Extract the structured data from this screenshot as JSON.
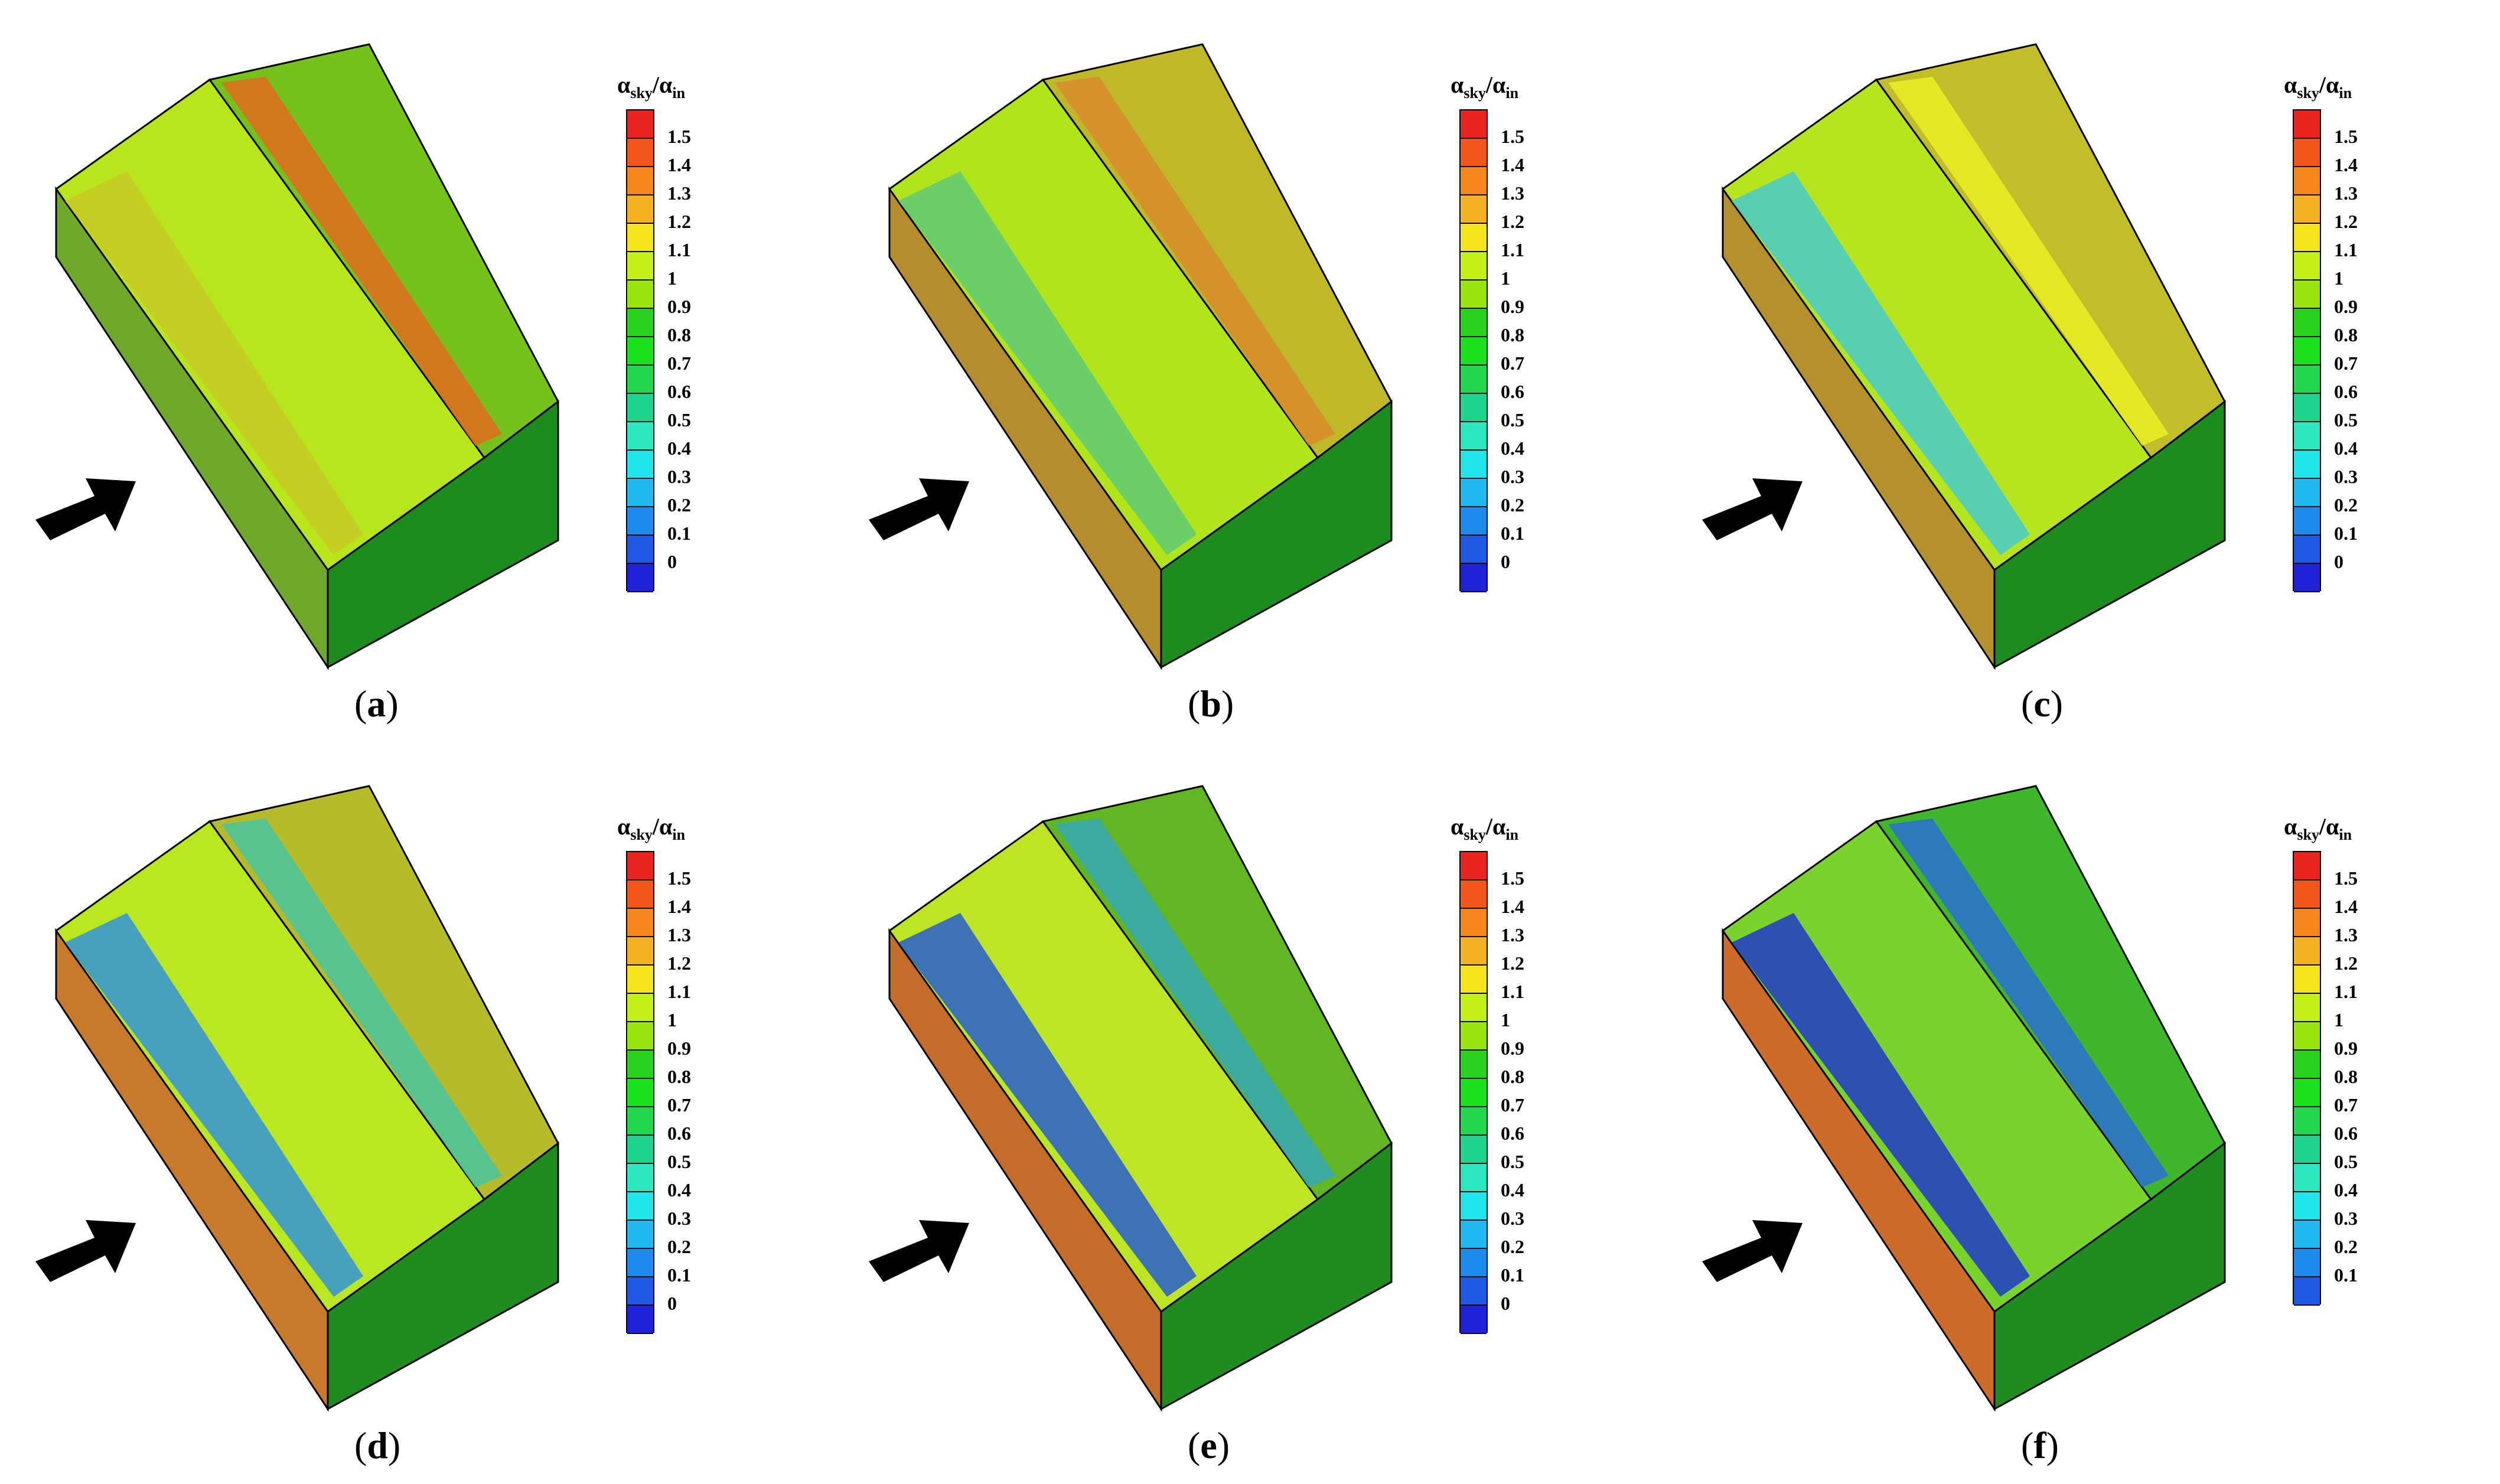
{
  "colorbar_title": {
    "main": "α",
    "sub1": "sky",
    "sep": "/α",
    "sub2": "in"
  },
  "levels_0": [
    "1.5",
    "1.4",
    "1.3",
    "1.2",
    "1.1",
    "1",
    "0.9",
    "0.8",
    "0.7",
    "0.6",
    "0.5",
    "0.4",
    "0.3",
    "0.2",
    "0.1",
    "0"
  ],
  "levels_01": [
    "1.5",
    "1.4",
    "1.3",
    "1.2",
    "1.1",
    "1",
    "0.9",
    "0.8",
    "0.7",
    "0.6",
    "0.5",
    "0.4",
    "0.3",
    "0.2",
    "0.1"
  ],
  "colors_0": [
    "#e8251e",
    "#f2561b",
    "#f7861e",
    "#f6b125",
    "#f5e51a",
    "#c3f015",
    "#9ae40f",
    "#28d21e",
    "#19e11c",
    "#23d84d",
    "#1fd48c",
    "#2ce7c0",
    "#21e3ea",
    "#22b9f0",
    "#1e8cec",
    "#1e5ae3",
    "#2121d8"
  ],
  "panels": [
    {
      "caption": "a",
      "scale": "levels_0",
      "roof_left": "#b9e51c",
      "roof_right": "#76c11c",
      "ridge": "#e26a1f",
      "left_wall": "#6fa82a",
      "front_wall": "#1c8c1d",
      "left_strip": "#c8c925"
    },
    {
      "caption": "b",
      "scale": "levels_0",
      "roof_left": "#b1e41b",
      "roof_right": "#bfb92a",
      "ridge": "#d8892a",
      "left_wall": "#b58d2e",
      "front_wall": "#1c8c1d",
      "left_strip": "#5ac87d"
    },
    {
      "caption": "c",
      "scale": "levels_0",
      "roof_left": "#b6e41e",
      "roof_right": "#c2bd2a",
      "ridge": "#eaf024",
      "left_wall": "#b5912d",
      "front_wall": "#1c8c1d",
      "left_strip": "#41c9d6"
    },
    {
      "caption": "d",
      "scale": "levels_0",
      "roof_left": "#bbe720",
      "roof_right": "#b5bb2b",
      "ridge": "#48c4a0",
      "left_wall": "#c77a2c",
      "front_wall": "#1f8c1f",
      "left_strip": "#2b8fe6"
    },
    {
      "caption": "e",
      "scale": "levels_0",
      "roof_left": "#bde425",
      "roof_right": "#62b624",
      "ridge": "#37a8b6",
      "left_wall": "#c46d2a",
      "front_wall": "#1f8c1f",
      "left_strip": "#1d56d8"
    },
    {
      "caption": "f",
      "scale": "levels_01",
      "roof_left": "#7ad22c",
      "roof_right": "#3fb62b",
      "ridge": "#2a6fd6",
      "left_wall": "#cd6b2a",
      "front_wall": "#1f8c1f",
      "left_strip": "#1d2fd6"
    }
  ]
}
